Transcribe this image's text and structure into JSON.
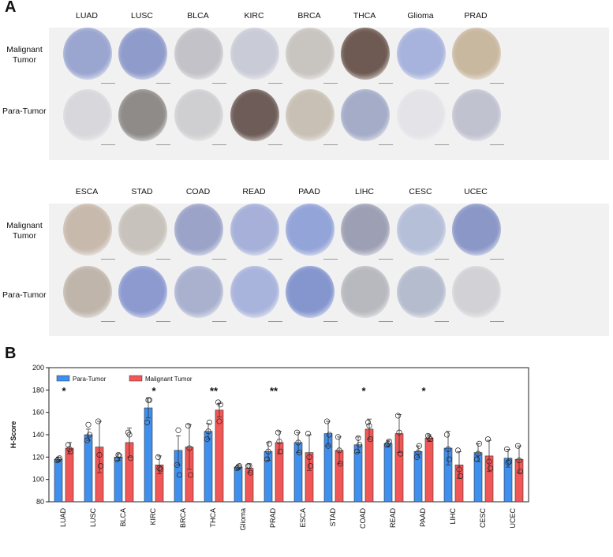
{
  "panelA": {
    "letter": "A",
    "row_labels": [
      "Malignant\nTumor",
      "Para-Tumor"
    ],
    "row_label_lines": {
      "malignant": [
        "Malignant",
        "Tumor"
      ],
      "para": "Para-Tumor"
    },
    "top_groups": [
      "LUAD",
      "LUSC",
      "BLCA",
      "KIRC",
      "BRCA",
      "THCA",
      "Glioma",
      "PRAD"
    ],
    "bottom_groups": [
      "ESCA",
      "STAD",
      "COAD",
      "READ",
      "PAAD",
      "LIHC",
      "CESC",
      "UCEC"
    ],
    "stain": {
      "top_malignant": [
        "#9aa6d0",
        "#8f9ccb",
        "#c2c2c8",
        "#c9cbd6",
        "#c8c4c0",
        "#6e5a52",
        "#a7b3dc",
        "#c9b8a0"
      ],
      "top_para": [
        "#d7d7dc",
        "#8e8b88",
        "#cfcfd1",
        "#6d5c57",
        "#c8c0b4",
        "#a4acc8",
        "#e3e3e8",
        "#c0c2cf"
      ],
      "bottom_malignant": [
        "#c8b9ad",
        "#c7c2bb",
        "#9ba3c8",
        "#a6b0d8",
        "#93a4d8",
        "#9da0b4",
        "#b5bfd8",
        "#8b97c7"
      ],
      "bottom_para": [
        "#bfb5ab",
        "#8d9ad0",
        "#a9b1cf",
        "#a9b4dc",
        "#8596cf",
        "#b8b9be",
        "#b4bccd",
        "#d2d2d6"
      ]
    }
  },
  "panelB": {
    "letter": "B"
  },
  "chart_data": {
    "type": "bar",
    "ylabel": "H-Score",
    "ylim": [
      80,
      200
    ],
    "yticks": [
      80,
      100,
      120,
      140,
      160,
      180,
      200
    ],
    "legend_position": "top-left",
    "categories": [
      "LUAD",
      "LUSC",
      "BLCA",
      "KIRC",
      "BRCA",
      "THCA",
      "Glioma",
      "PRAD",
      "ESCA",
      "STAD",
      "COAD",
      "READ",
      "PAAD",
      "LIHC",
      "CESC",
      "UCEC"
    ],
    "series": [
      {
        "name": "Para-Tumor",
        "color": "#3f8fef",
        "values": [
          118,
          140,
          120,
          164,
          126,
          143,
          111,
          125,
          133,
          141,
          131,
          132,
          125,
          128,
          124,
          119
        ],
        "err": [
          2,
          5,
          3,
          9,
          13,
          7,
          2,
          8,
          9,
          11,
          7,
          3,
          5,
          15,
          8,
          8
        ],
        "points": [
          [
            117,
            119,
            118
          ],
          [
            135,
            140,
            149
          ],
          [
            118,
            121,
            122
          ],
          [
            151,
            171,
            171
          ],
          [
            113,
            104,
            144
          ],
          [
            136,
            151,
            143
          ],
          [
            110,
            112,
            111
          ],
          [
            118,
            132,
            125
          ],
          [
            142,
            124,
            133
          ],
          [
            152,
            140,
            130
          ],
          [
            125,
            131,
            137
          ],
          [
            131,
            134,
            132
          ],
          [
            120,
            130,
            124
          ],
          [
            140,
            118,
            127
          ],
          [
            118,
            132,
            123
          ],
          [
            127,
            116,
            115
          ]
        ]
      },
      {
        "name": "Malignant Tumor",
        "color": "#f25757",
        "values": [
          128,
          129,
          133,
          113,
          129,
          162,
          110,
          133,
          124,
          126,
          145,
          141,
          137,
          113,
          121,
          118
        ],
        "err": [
          5,
          23,
          13,
          8,
          20,
          6,
          4,
          10,
          16,
          12,
          9,
          17,
          3,
          12,
          14,
          12
        ],
        "points": [
          [
            131,
            125,
            127
          ],
          [
            152,
            112,
            122
          ],
          [
            142,
            119,
            140
          ],
          [
            120,
            109,
            110
          ],
          [
            148,
            104,
            128
          ],
          [
            169,
            167,
            152
          ],
          [
            112,
            106,
            112
          ],
          [
            142,
            125,
            134
          ],
          [
            141,
            112,
            120
          ],
          [
            138,
            114,
            126
          ],
          [
            151,
            136,
            148
          ],
          [
            157,
            123,
            142
          ],
          [
            139,
            136,
            137
          ],
          [
            126,
            103,
            109
          ],
          [
            136,
            110,
            116
          ],
          [
            130,
            107,
            117
          ]
        ]
      }
    ],
    "significance": [
      "*",
      "",
      "",
      "*",
      "",
      "**",
      "",
      "**",
      "",
      "",
      "*",
      "",
      "*",
      "",
      "",
      ""
    ]
  }
}
